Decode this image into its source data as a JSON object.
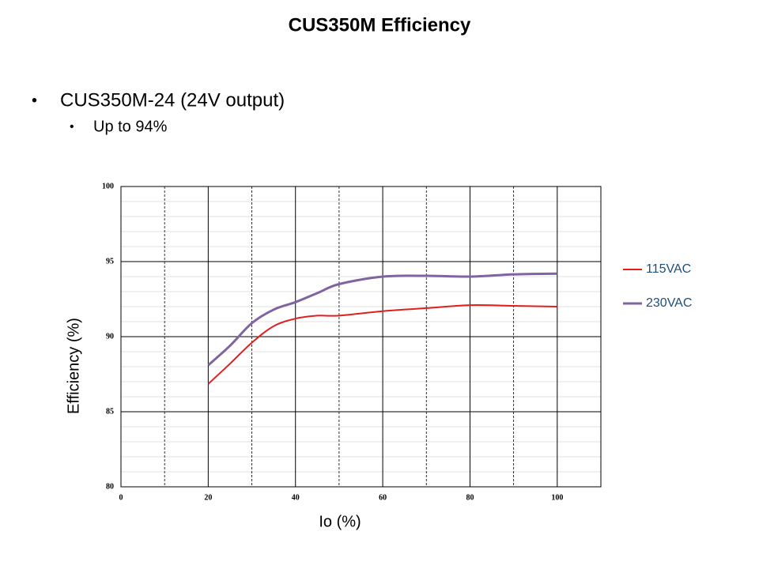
{
  "slide": {
    "title": "CUS350M Efficiency",
    "bullets": [
      "CUS350M-24 (24V output)",
      "Up to 94%"
    ]
  },
  "chart_data": {
    "type": "line",
    "x": [
      20,
      25,
      30,
      35,
      40,
      45,
      50,
      60,
      70,
      80,
      90,
      100
    ],
    "series": [
      {
        "name": "115VAC",
        "color": "#e02020",
        "values": [
          86.85,
          88.2,
          89.6,
          90.7,
          91.2,
          91.4,
          91.4,
          91.7,
          91.9,
          92.1,
          92.05,
          92.0
        ]
      },
      {
        "name": "230VAC",
        "color": "#8064a2",
        "values": [
          88.1,
          89.4,
          90.9,
          91.8,
          92.3,
          92.9,
          93.5,
          94.0,
          94.05,
          94.0,
          94.15,
          94.2
        ]
      }
    ],
    "xlim": [
      0,
      110
    ],
    "xticks": [
      0,
      20,
      40,
      60,
      80,
      100
    ],
    "ylim": [
      80,
      100
    ],
    "yticks": [
      80,
      85,
      90,
      95,
      100
    ],
    "xlabel": "Io (%)",
    "ylabel": "Efficiency (%)",
    "grid": true,
    "legend": "right"
  }
}
